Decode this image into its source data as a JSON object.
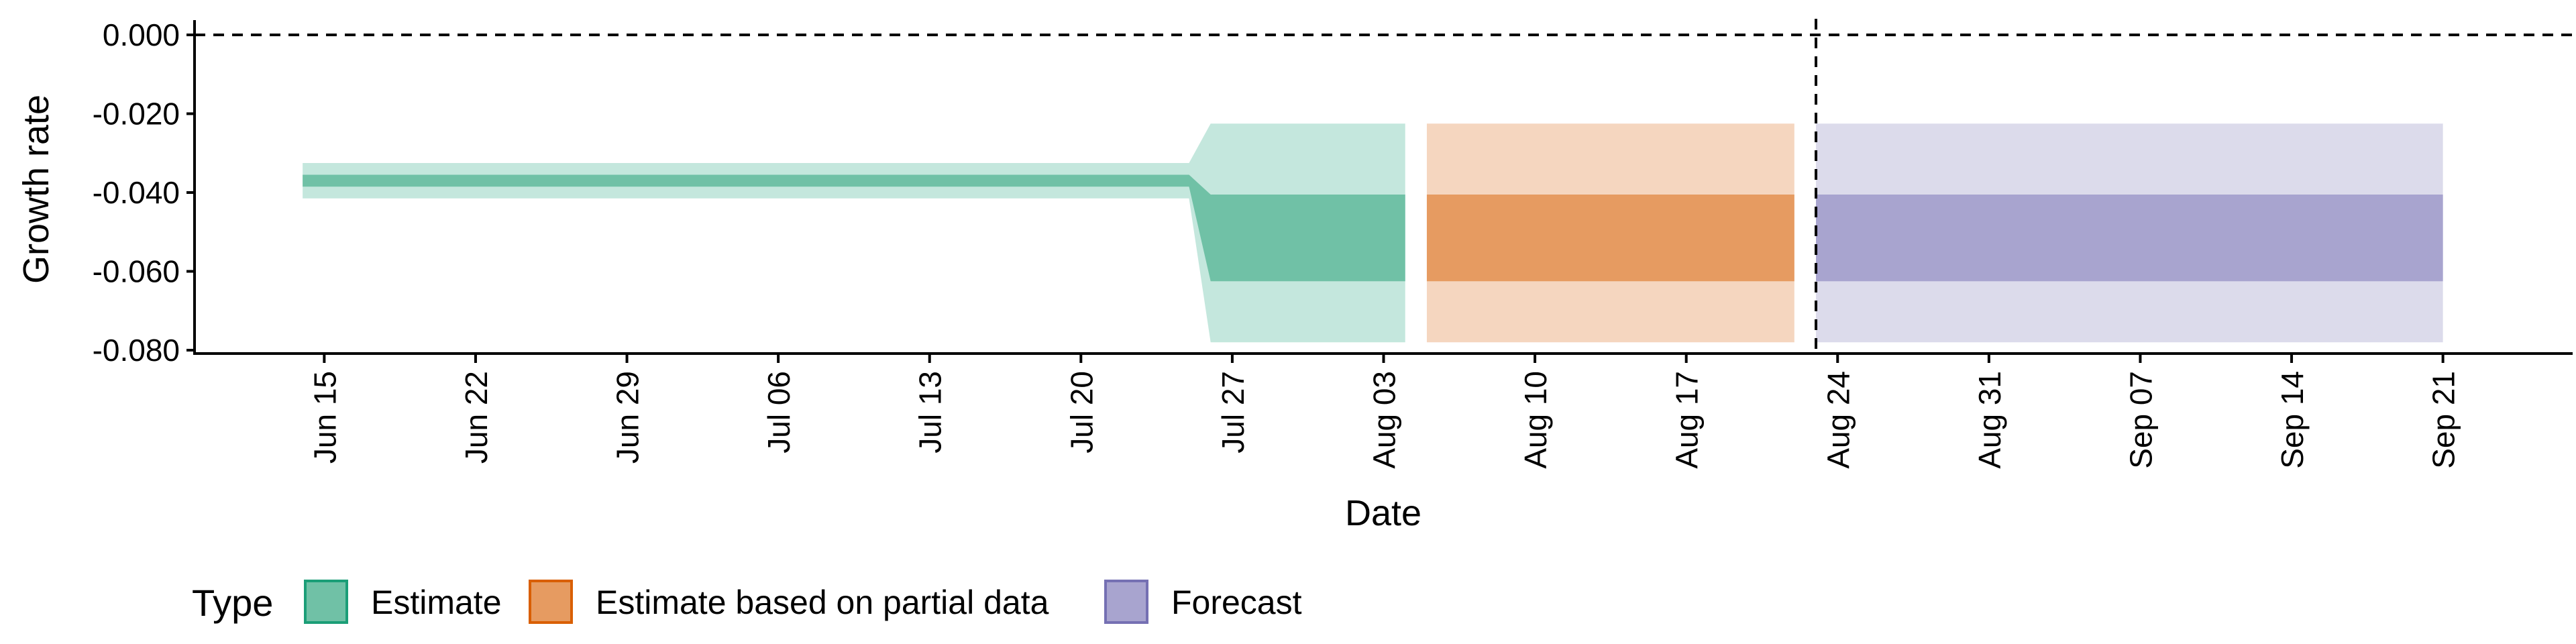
{
  "chart_data": {
    "type": "area",
    "title": "",
    "xlabel": "Date",
    "ylabel": "Growth rate",
    "ylim": [
      -0.08,
      0.0
    ],
    "yticks": [
      {
        "value": 0.0,
        "label": "0.000"
      },
      {
        "value": -0.02,
        "label": "-0.020"
      },
      {
        "value": -0.04,
        "label": "-0.040"
      },
      {
        "value": -0.06,
        "label": "-0.060"
      },
      {
        "value": -0.08,
        "label": "-0.080"
      }
    ],
    "xticks": [
      {
        "date": "2020-06-15",
        "label": "Jun 15"
      },
      {
        "date": "2020-06-22",
        "label": "Jun 22"
      },
      {
        "date": "2020-06-29",
        "label": "Jun 29"
      },
      {
        "date": "2020-07-06",
        "label": "Jul 06"
      },
      {
        "date": "2020-07-13",
        "label": "Jul 13"
      },
      {
        "date": "2020-07-20",
        "label": "Jul 20"
      },
      {
        "date": "2020-07-27",
        "label": "Jul 27"
      },
      {
        "date": "2020-08-03",
        "label": "Aug 03"
      },
      {
        "date": "2020-08-10",
        "label": "Aug 10"
      },
      {
        "date": "2020-08-17",
        "label": "Aug 17"
      },
      {
        "date": "2020-08-24",
        "label": "Aug 24"
      },
      {
        "date": "2020-08-31",
        "label": "Aug 31"
      },
      {
        "date": "2020-09-07",
        "label": "Sep 07"
      },
      {
        "date": "2020-09-14",
        "label": "Sep 14"
      },
      {
        "date": "2020-09-21",
        "label": "Sep 21"
      }
    ],
    "xlim": [
      "2020-06-09",
      "2020-09-27"
    ],
    "reference_lines": {
      "horizontal_y": 0.0,
      "vertical_date": "2020-08-23"
    },
    "legend": {
      "title": "Type",
      "position": "bottom-left",
      "entries": [
        {
          "label": "Estimate",
          "fill": "#70c1a6",
          "stroke": "#1b9e77"
        },
        {
          "label": "Estimate based on partial data",
          "fill": "#e69b61",
          "stroke": "#d95f02"
        },
        {
          "label": "Forecast",
          "fill": "#a8a4cf",
          "stroke": "#7570b3"
        }
      ]
    },
    "series": [
      {
        "name": "Estimate",
        "color_outer": "#c4e7dd",
        "color_inner": "#70c1a6",
        "points": [
          {
            "date": "2020-06-14",
            "lower_90": -0.0415,
            "lower_50": -0.0385,
            "upper_50": -0.0355,
            "upper_90": -0.0325
          },
          {
            "date": "2020-07-25",
            "lower_90": -0.0415,
            "lower_50": -0.0385,
            "upper_50": -0.0355,
            "upper_90": -0.0325
          },
          {
            "date": "2020-07-26",
            "lower_90": -0.078,
            "lower_50": -0.0625,
            "upper_50": -0.0405,
            "upper_90": -0.0225
          },
          {
            "date": "2020-08-04",
            "lower_90": -0.078,
            "lower_50": -0.0625,
            "upper_50": -0.0405,
            "upper_90": -0.0225
          }
        ]
      },
      {
        "name": "Estimate based on partial data",
        "color_outer": "#f5d6bf",
        "color_inner": "#e69b61",
        "points": [
          {
            "date": "2020-08-05",
            "lower_90": -0.078,
            "lower_50": -0.0625,
            "upper_50": -0.0405,
            "upper_90": -0.0225
          },
          {
            "date": "2020-08-22",
            "lower_90": -0.078,
            "lower_50": -0.0625,
            "upper_50": -0.0405,
            "upper_90": -0.0225
          }
        ]
      },
      {
        "name": "Forecast",
        "color_outer": "#dcdbeb",
        "color_inner": "#a8a4cf",
        "points": [
          {
            "date": "2020-08-23",
            "lower_90": -0.078,
            "lower_50": -0.0625,
            "upper_50": -0.0405,
            "upper_90": -0.0225
          },
          {
            "date": "2020-09-21",
            "lower_90": -0.078,
            "lower_50": -0.0625,
            "upper_50": -0.0405,
            "upper_90": -0.0225
          }
        ]
      }
    ]
  }
}
